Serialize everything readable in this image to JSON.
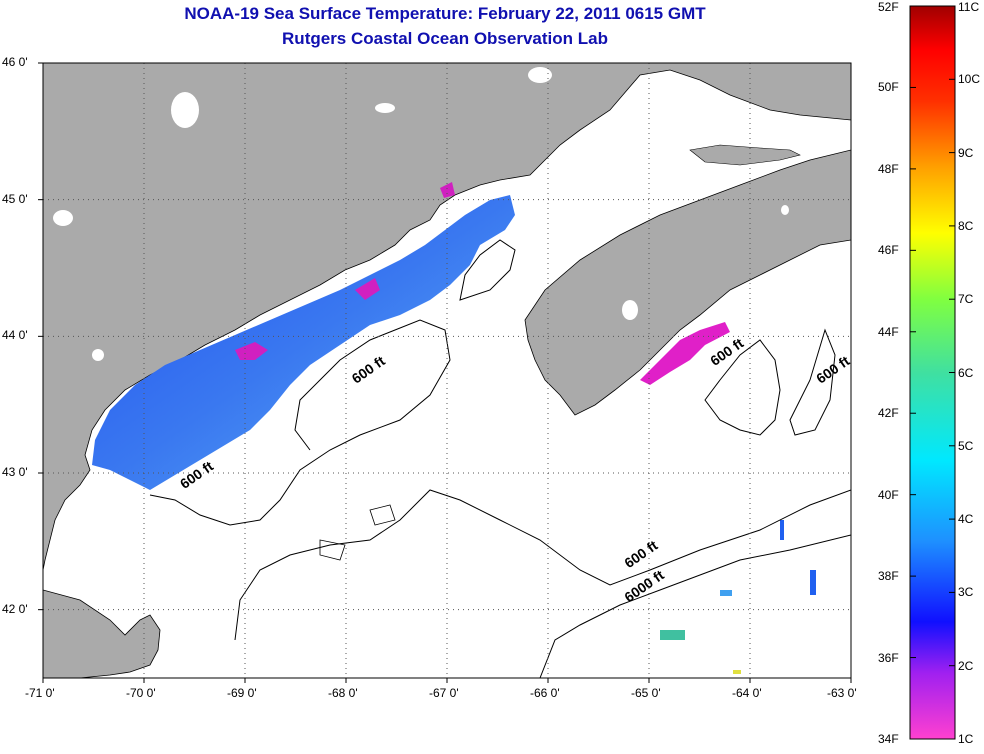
{
  "title": "NOAA-19 Sea Surface Temperature:  February 22, 2011 0615 GMT",
  "subtitle": "Rutgers Coastal Ocean Observation Lab",
  "lon_ticks": [
    "-71 0'",
    "-70 0'",
    "-69 0'",
    "-68 0'",
    "-67 0'",
    "-66 0'",
    "-65 0'",
    "-64 0'",
    "-63 0'"
  ],
  "lat_ticks": [
    "46 0'",
    "45 0'",
    "44 0'",
    "43 0'",
    "42 0'"
  ],
  "lon_values": [
    -71,
    -70,
    -69,
    -68,
    -67,
    -66,
    -65,
    -64,
    -63
  ],
  "lat_values": [
    46,
    45,
    44,
    43,
    42
  ],
  "extent": {
    "lon": [
      -71,
      -63
    ],
    "lat": [
      41.5,
      46
    ]
  },
  "contour_labels": [
    {
      "text": "600 ft",
      "lon": -67.9,
      "lat": 43.65
    },
    {
      "text": "600 ft",
      "lon": -69.6,
      "lat": 42.88
    },
    {
      "text": "600 ft",
      "lon": -64.35,
      "lat": 43.78
    },
    {
      "text": "600 ft",
      "lon": -63.3,
      "lat": 43.65
    },
    {
      "text": "600 ft",
      "lon": -65.2,
      "lat": 42.3
    },
    {
      "text": "6000 ft",
      "lon": -65.2,
      "lat": 42.05
    }
  ],
  "colorbar": {
    "fahrenheit": [
      "52F",
      "50F",
      "48F",
      "46F",
      "44F",
      "42F",
      "40F",
      "38F",
      "36F",
      "34F"
    ],
    "celsius": [
      "11C",
      "10C",
      "9C",
      "8C",
      "7C",
      "6C",
      "5C",
      "4C",
      "3C",
      "2C",
      "1C"
    ],
    "colors": [
      "#ff44cc",
      "#a020f0",
      "#1010ff",
      "#1e90ff",
      "#00ffff",
      "#40e0a0",
      "#80ff40",
      "#ffff00",
      "#ffa000",
      "#ff3000",
      "#ff0000",
      "#a00000"
    ]
  },
  "colors": {
    "land": "#aaaaaa",
    "title": "#1010b0",
    "sst_cold": "#2a60f0",
    "sst_warm": "#60b0f8",
    "sst_pink": "#e020c8"
  }
}
